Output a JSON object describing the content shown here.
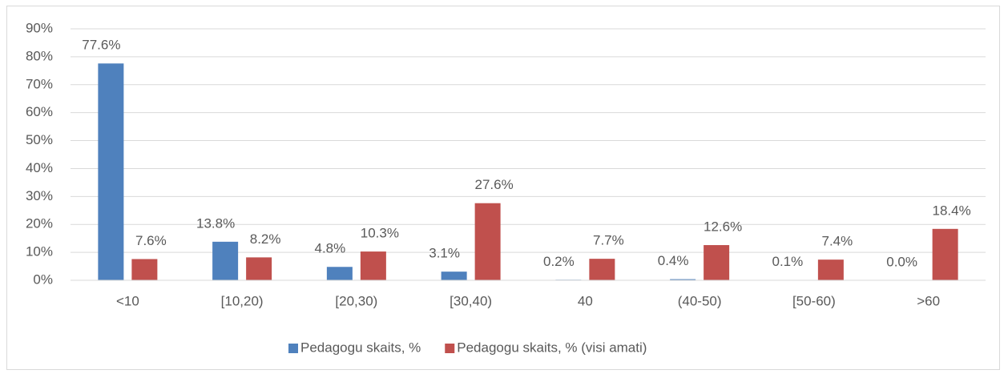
{
  "chart_data": {
    "type": "bar",
    "categories": [
      "<10",
      "[10,20)",
      "[20,30)",
      "[30,40)",
      "40",
      "(40-50)",
      "[50-60)",
      ">60"
    ],
    "series": [
      {
        "name": "Pedagogu skaits, %",
        "color": "#4f81bd",
        "values": [
          77.6,
          13.8,
          4.8,
          3.1,
          0.2,
          0.4,
          0.1,
          0.0
        ],
        "value_labels": [
          "77.6%",
          "13.8%",
          "4.8%",
          "3.1%",
          "0.2%",
          "0.4%",
          "0.1%",
          "0.0%"
        ]
      },
      {
        "name": "Pedagogu skaits, % (visi amati)",
        "color": "#c0504d",
        "values": [
          7.6,
          8.2,
          10.3,
          27.6,
          7.7,
          12.6,
          7.4,
          18.4
        ],
        "value_labels": [
          "7.6%",
          "8.2%",
          "10.3%",
          "27.6%",
          "7.7%",
          "12.6%",
          "7.4%",
          "18.4%"
        ]
      }
    ],
    "ylim": [
      0,
      90
    ],
    "yticks": [
      {
        "value": 0,
        "label": "0%"
      },
      {
        "value": 10,
        "label": "10%"
      },
      {
        "value": 20,
        "label": "20%"
      },
      {
        "value": 30,
        "label": "30%"
      },
      {
        "value": 40,
        "label": "40%"
      },
      {
        "value": 50,
        "label": "50%"
      },
      {
        "value": 60,
        "label": "60%"
      },
      {
        "value": 70,
        "label": "70%"
      },
      {
        "value": 80,
        "label": "80%"
      },
      {
        "value": 90,
        "label": "90%"
      }
    ],
    "grid": true,
    "legend": "bottom"
  }
}
